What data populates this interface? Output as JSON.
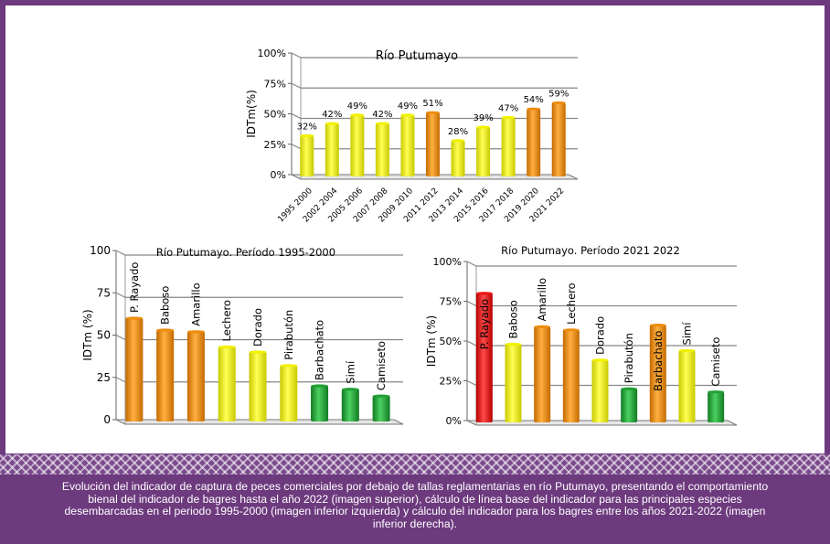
{
  "caption": "Evolución del indicador de captura de peces comerciales por debajo de tallas reglamentarias en río Putumayo, presentando el comportamiento bienal del indicador de bagres hasta el año 2022 (imagen superior), cálculo de línea base del indicador para las principales especies desembarcadas en el periodo 1995-2000 (imagen inferior izquierda) y cálculo del indicador para los bagres entre los años 2021-2022 (imagen inferior derecha).",
  "colors": {
    "yellow": "#f2f200",
    "orange": "#ee8c0c",
    "green": "#22a035",
    "red": "#ee1111",
    "frame": "#6d3a7e"
  },
  "chart_data": [
    {
      "type": "bar",
      "title": "Río Putumayo",
      "ylabel": "IDTm(%)",
      "ylim": [
        0,
        100
      ],
      "yticks": [
        "0%",
        "25%",
        "50%",
        "75%",
        "100%"
      ],
      "grid": true,
      "categories": [
        "1995 2000",
        "2002 2004",
        "2005 2006",
        "2007 2008",
        "2009 2010",
        "2011 2012",
        "2013 2014",
        "2015 2016",
        "2017 2018",
        "2019 2020",
        "2021 2022"
      ],
      "values": [
        32,
        42,
        49,
        42,
        49,
        51,
        28,
        39,
        47,
        54,
        59
      ],
      "data_labels": [
        "32%",
        "42%",
        "49%",
        "42%",
        "49%",
        "51%",
        "28%",
        "39%",
        "47%",
        "54%",
        "59%"
      ],
      "bar_colors": [
        "yellow",
        "yellow",
        "yellow",
        "yellow",
        "yellow",
        "orange",
        "yellow",
        "yellow",
        "yellow",
        "orange",
        "orange"
      ]
    },
    {
      "type": "bar",
      "title": "Río Putumayo. Período 1995-2000",
      "ylabel": "IDTm (%)",
      "ylim": [
        0,
        100
      ],
      "yticks": [
        "0",
        "25",
        "50",
        "75",
        "100"
      ],
      "grid": true,
      "categories": [
        "P. Rayado",
        "Baboso",
        "Amarillo",
        "Lechero",
        "Dorado",
        "Pirabutón",
        "Barbachato",
        "Simí",
        "Camiseto"
      ],
      "values": [
        60,
        53,
        52,
        43,
        40,
        32,
        20,
        18,
        14
      ],
      "bar_colors": [
        "orange",
        "orange",
        "orange",
        "yellow",
        "yellow",
        "yellow",
        "green",
        "green",
        "green"
      ]
    },
    {
      "type": "bar",
      "title": "Río Putumayo. Período 2021 2022",
      "ylabel": "IDTm (%)",
      "ylim": [
        0,
        100
      ],
      "yticks": [
        "0%",
        "25%",
        "50%",
        "75%",
        "100%"
      ],
      "grid": true,
      "categories": [
        "P. Rayado",
        "Baboso",
        "Amarillo",
        "Lechero",
        "Dorado",
        "Pirabutón",
        "Barbachato",
        "Simí",
        "Camiseto"
      ],
      "values": [
        80,
        48,
        59,
        57,
        38,
        20,
        60,
        44,
        18
      ],
      "bar_colors": [
        "red",
        "yellow",
        "orange",
        "orange",
        "yellow",
        "green",
        "orange",
        "yellow",
        "green"
      ]
    }
  ]
}
